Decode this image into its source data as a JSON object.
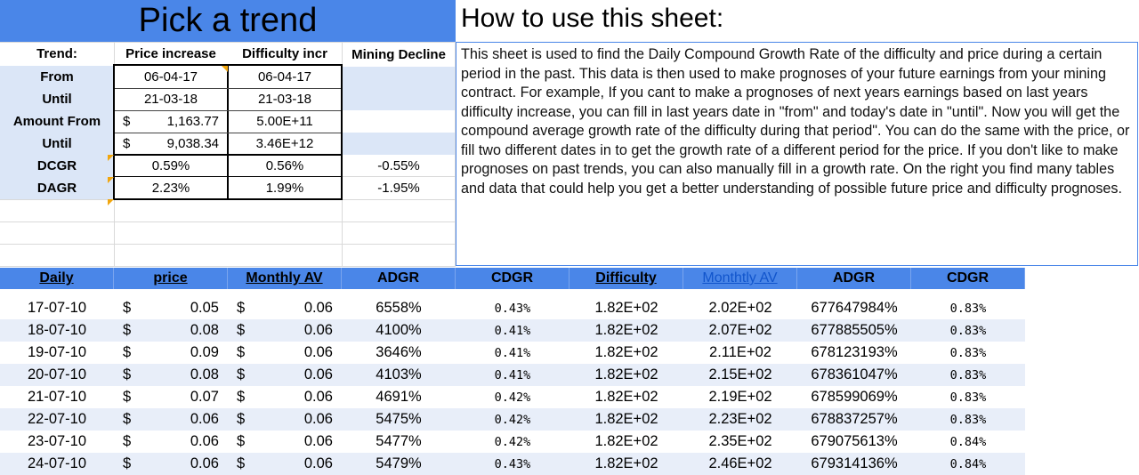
{
  "title": "Pick a trend",
  "howto": {
    "heading": "How to use this sheet:",
    "text": "This sheet is used to find the Daily Compound Growth Rate of the difficulty and price during a certain period in the past. This data is then used to make prognoses of your future earnings from your mining contract. For example, If you cant to make a prognoses of next years earnings based on last years difficulty increase, you can fill in last years date in \"from\" and today's date in \"until\". Now you will get the compound average growth rate of the difficulty during that period\". You can do the same with the price, or fill two different dates in to get the growth rate of a different period for the price. If you don't like to make prognoses on past trends, you can also manually fill in a growth rate. On the right you find many tables and data that could help you get a better understanding of possible future price and difficulty prognoses."
  },
  "trend": {
    "header": {
      "label": "Trend:",
      "price": "Price increase",
      "difficulty": "Difficulty incr",
      "mining": "Mining Decline"
    },
    "from": {
      "label": "From",
      "price": "06-04-17",
      "difficulty": "06-04-17"
    },
    "until": {
      "label": "Until",
      "price": "21-03-18",
      "difficulty": "21-03-18"
    },
    "amount_from": {
      "label": "Amount From",
      "currency": "$",
      "price": "1,163.77",
      "difficulty": "5.00E+11"
    },
    "amount_until": {
      "label": "Until",
      "currency": "$",
      "price": "9,038.34",
      "difficulty": "3.46E+12"
    },
    "dcgr": {
      "label": "DCGR",
      "price": "0.59%",
      "difficulty": "0.56%",
      "mining": "-0.55%"
    },
    "dagr": {
      "label": "DAGR",
      "price": "2.23%",
      "difficulty": "1.99%",
      "mining": "-1.95%"
    }
  },
  "table": {
    "headers": {
      "daily": "Daily",
      "price": "price",
      "monthly_av": "Monthly AV",
      "adgr": "ADGR",
      "cdgr": "CDGR",
      "difficulty": "Difficulty",
      "monthly_av2": "Monthtly AV",
      "adgr2": "ADGR",
      "cdgr2": "CDGR"
    },
    "rows": [
      {
        "date": "17-07-10",
        "cur1": "$",
        "price": "0.05",
        "cur2": "$",
        "mav": "0.06",
        "adgr": "6558%",
        "cdgr": "0.43%",
        "diff": "1.82E+02",
        "mav2": "2.02E+02",
        "adgr2": "677647984%",
        "cdgr2": "0.83%"
      },
      {
        "date": "18-07-10",
        "cur1": "$",
        "price": "0.08",
        "cur2": "$",
        "mav": "0.06",
        "adgr": "4100%",
        "cdgr": "0.41%",
        "diff": "1.82E+02",
        "mav2": "2.07E+02",
        "adgr2": "677885505%",
        "cdgr2": "0.83%"
      },
      {
        "date": "19-07-10",
        "cur1": "$",
        "price": "0.09",
        "cur2": "$",
        "mav": "0.06",
        "adgr": "3646%",
        "cdgr": "0.41%",
        "diff": "1.82E+02",
        "mav2": "2.11E+02",
        "adgr2": "678123193%",
        "cdgr2": "0.83%"
      },
      {
        "date": "20-07-10",
        "cur1": "$",
        "price": "0.08",
        "cur2": "$",
        "mav": "0.06",
        "adgr": "4103%",
        "cdgr": "0.41%",
        "diff": "1.82E+02",
        "mav2": "2.15E+02",
        "adgr2": "678361047%",
        "cdgr2": "0.83%"
      },
      {
        "date": "21-07-10",
        "cur1": "$",
        "price": "0.07",
        "cur2": "$",
        "mav": "0.06",
        "adgr": "4691%",
        "cdgr": "0.42%",
        "diff": "1.82E+02",
        "mav2": "2.19E+02",
        "adgr2": "678599069%",
        "cdgr2": "0.83%"
      },
      {
        "date": "22-07-10",
        "cur1": "$",
        "price": "0.06",
        "cur2": "$",
        "mav": "0.06",
        "adgr": "5475%",
        "cdgr": "0.42%",
        "diff": "1.82E+02",
        "mav2": "2.23E+02",
        "adgr2": "678837257%",
        "cdgr2": "0.83%"
      },
      {
        "date": "23-07-10",
        "cur1": "$",
        "price": "0.06",
        "cur2": "$",
        "mav": "0.06",
        "adgr": "5477%",
        "cdgr": "0.42%",
        "diff": "1.82E+02",
        "mav2": "2.35E+02",
        "adgr2": "679075613%",
        "cdgr2": "0.84%"
      },
      {
        "date": "24-07-10",
        "cur1": "$",
        "price": "0.06",
        "cur2": "$",
        "mav": "0.06",
        "adgr": "5479%",
        "cdgr": "0.43%",
        "diff": "1.82E+02",
        "mav2": "2.46E+02",
        "adgr2": "679314136%",
        "cdgr2": "0.84%"
      }
    ]
  },
  "colors": {
    "header_blue": "#4a86e8",
    "light_blue": "#dbe6f7",
    "link_blue": "#1155cc",
    "note_orange": "#f1a60e"
  }
}
